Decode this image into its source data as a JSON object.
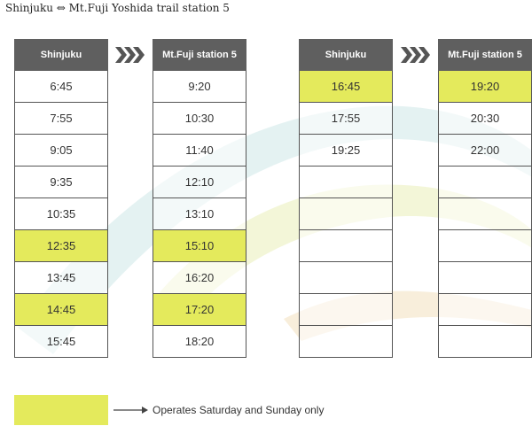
{
  "title": "Shinjuku ⇔ Mt.Fuji Yoshida trail station 5",
  "colors": {
    "header": "#5f5f5f",
    "weekend": "#e4ea5c",
    "border": "#555555"
  },
  "icons": {
    "direction": "chevron-right-icon",
    "legend": "arrow-right-icon"
  },
  "outbound": {
    "depart_header": "Shinjuku",
    "arrive_header": "Mt.Fuji station 5",
    "rows": [
      {
        "depart": "6:45",
        "arrive": "9:20",
        "weekend": false
      },
      {
        "depart": "7:55",
        "arrive": "10:30",
        "weekend": false
      },
      {
        "depart": "9:05",
        "arrive": "11:40",
        "weekend": false
      },
      {
        "depart": "9:35",
        "arrive": "12:10",
        "weekend": false
      },
      {
        "depart": "10:35",
        "arrive": "13:10",
        "weekend": false
      },
      {
        "depart": "12:35",
        "arrive": "15:10",
        "weekend": true
      },
      {
        "depart": "13:45",
        "arrive": "16:20",
        "weekend": false
      },
      {
        "depart": "14:45",
        "arrive": "17:20",
        "weekend": true
      },
      {
        "depart": "15:45",
        "arrive": "18:20",
        "weekend": false
      }
    ]
  },
  "inbound": {
    "depart_header": "Shinjuku",
    "arrive_header": "Mt.Fuji station 5",
    "rows": [
      {
        "depart": "16:45",
        "arrive": "19:20",
        "weekend": true
      },
      {
        "depart": "17:55",
        "arrive": "20:30",
        "weekend": false
      },
      {
        "depart": "19:25",
        "arrive": "22:00",
        "weekend": false
      },
      {
        "depart": "",
        "arrive": "",
        "weekend": false
      },
      {
        "depart": "",
        "arrive": "",
        "weekend": false
      },
      {
        "depart": "",
        "arrive": "",
        "weekend": false
      },
      {
        "depart": "",
        "arrive": "",
        "weekend": false
      },
      {
        "depart": "",
        "arrive": "",
        "weekend": false
      },
      {
        "depart": "",
        "arrive": "",
        "weekend": false
      }
    ]
  },
  "legend": {
    "text": "Operates Saturday and Sunday only"
  }
}
